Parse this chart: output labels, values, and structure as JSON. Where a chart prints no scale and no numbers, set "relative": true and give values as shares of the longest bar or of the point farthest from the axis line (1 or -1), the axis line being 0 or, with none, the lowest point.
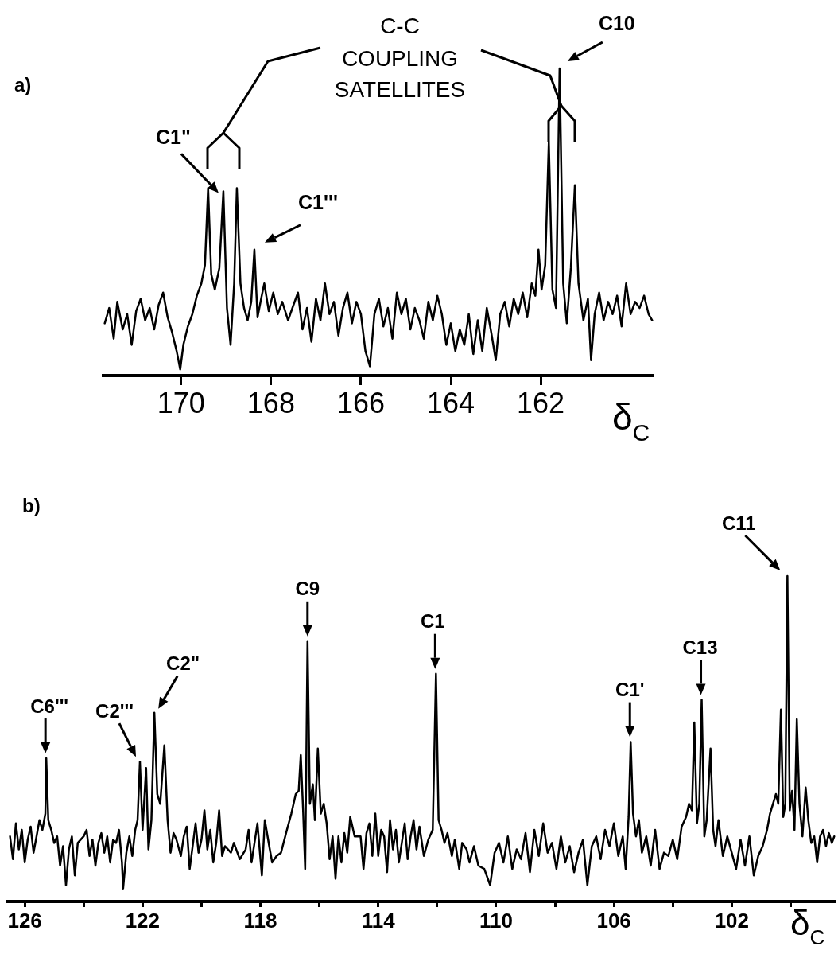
{
  "chart_data": [
    {
      "type": "line",
      "title": "a)",
      "xlabel": "δ$_{C}$",
      "relative": true,
      "marker": "none",
      "line_style": "solid",
      "xlim": [
        171.73,
        159.49
      ],
      "xticks": [
        170,
        168,
        166,
        164,
        162
      ],
      "annotations": [
        "C-C COUPLING SATELLITES",
        {
          "text": "C1\"",
          "x": 169.06,
          "y": 0.6
        },
        {
          "text": "C1'''",
          "x": 168.37,
          "y": 0.41
        },
        {
          "text": "C10",
          "x": 161.58,
          "y": 1.0
        }
      ],
      "series": [
        {
          "color": "#000000",
          "x": [
            171.7,
            171.6,
            171.5,
            171.42,
            171.3,
            171.2,
            171.1,
            171.0,
            170.9,
            170.8,
            170.7,
            170.6,
            170.5,
            170.4,
            170.3,
            170.2,
            170.1,
            170.02,
            169.95,
            169.85,
            169.75,
            169.65,
            169.55,
            169.47,
            169.4,
            169.33,
            169.25,
            169.15,
            169.06,
            168.98,
            168.9,
            168.82,
            168.76,
            168.68,
            168.6,
            168.52,
            168.44,
            168.37,
            168.3,
            168.22,
            168.15,
            168.05,
            167.95,
            167.85,
            167.75,
            167.62,
            167.5,
            167.4,
            167.3,
            167.2,
            167.1,
            167.0,
            166.9,
            166.8,
            166.7,
            166.6,
            166.5,
            166.4,
            166.3,
            166.2,
            166.1,
            166.0,
            165.9,
            165.8,
            165.7,
            165.6,
            165.5,
            165.4,
            165.3,
            165.2,
            165.1,
            165.0,
            164.9,
            164.8,
            164.7,
            164.6,
            164.5,
            164.4,
            164.3,
            164.2,
            164.1,
            164.0,
            163.9,
            163.8,
            163.7,
            163.6,
            163.5,
            163.4,
            163.3,
            163.2,
            163.1,
            163.0,
            162.9,
            162.8,
            162.7,
            162.6,
            162.5,
            162.4,
            162.3,
            162.2,
            162.12,
            162.05,
            161.98,
            161.9,
            161.82,
            161.74,
            161.66,
            161.58,
            161.5,
            161.42,
            161.33,
            161.24,
            161.16,
            161.05,
            160.95,
            160.88,
            160.8,
            160.7,
            160.6,
            160.5,
            160.4,
            160.3,
            160.2,
            160.1,
            160.0,
            159.9,
            159.8,
            159.7,
            159.6,
            159.52
          ],
          "values": [
            0.17,
            0.22,
            0.12,
            0.24,
            0.15,
            0.2,
            0.1,
            0.21,
            0.25,
            0.18,
            0.22,
            0.15,
            0.23,
            0.27,
            0.19,
            0.14,
            0.08,
            0.02,
            0.1,
            0.16,
            0.2,
            0.26,
            0.3,
            0.36,
            0.61,
            0.33,
            0.28,
            0.35,
            0.6,
            0.22,
            0.1,
            0.3,
            0.61,
            0.3,
            0.22,
            0.18,
            0.24,
            0.41,
            0.19,
            0.25,
            0.3,
            0.21,
            0.27,
            0.2,
            0.24,
            0.18,
            0.23,
            0.27,
            0.15,
            0.22,
            0.11,
            0.25,
            0.18,
            0.3,
            0.2,
            0.24,
            0.13,
            0.22,
            0.27,
            0.17,
            0.24,
            0.2,
            0.08,
            0.03,
            0.2,
            0.25,
            0.16,
            0.22,
            0.12,
            0.27,
            0.2,
            0.25,
            0.15,
            0.22,
            0.18,
            0.12,
            0.24,
            0.18,
            0.26,
            0.2,
            0.1,
            0.17,
            0.08,
            0.15,
            0.1,
            0.2,
            0.07,
            0.18,
            0.08,
            0.22,
            0.14,
            0.05,
            0.2,
            0.24,
            0.16,
            0.25,
            0.2,
            0.27,
            0.19,
            0.3,
            0.26,
            0.41,
            0.28,
            0.36,
            0.76,
            0.28,
            0.22,
            1.0,
            0.3,
            0.17,
            0.35,
            0.62,
            0.3,
            0.18,
            0.25,
            0.05,
            0.2,
            0.27,
            0.18,
            0.24,
            0.2,
            0.26,
            0.16,
            0.3,
            0.2,
            0.24,
            0.22,
            0.26,
            0.2,
            0.18
          ]
        }
      ]
    },
    {
      "type": "line",
      "title": "b)",
      "xlabel": "δ$_{C}$",
      "relative": true,
      "marker": "none",
      "line_style": "solid",
      "xlim": [
        126.57,
        98.5
      ],
      "xticks": [
        126,
        {
          "value": 124,
          "label": null
        },
        122,
        {
          "value": 120,
          "label": null
        },
        118,
        {
          "value": 116,
          "label": null
        },
        114,
        {
          "value": 112,
          "label": null
        },
        110,
        {
          "value": 108,
          "label": null
        },
        106,
        {
          "value": 104,
          "label": null
        },
        102,
        {
          "value": 100,
          "label": null
        }
      ],
      "annotations": [
        {
          "text": "C6'''",
          "x": 125.27,
          "y": 0.44
        },
        {
          "text": "C2'''",
          "x": 122.09,
          "y": 0.43
        },
        {
          "text": "C2\"",
          "x": 121.6,
          "y": 0.58
        },
        {
          "text": "C9",
          "x": 116.4,
          "y": 0.8
        },
        {
          "text": "C1",
          "x": 112.04,
          "y": 0.7
        },
        {
          "text": "C1'",
          "x": 105.43,
          "y": 0.49
        },
        {
          "text": "C13",
          "x": 103.02,
          "y": 0.62
        },
        {
          "text": "C11",
          "x": 100.11,
          "y": 1.0
        }
      ],
      "series": [
        {
          "color": "#000000",
          "x": [
            126.5,
            126.4,
            126.3,
            126.2,
            126.1,
            126.0,
            125.9,
            125.8,
            125.7,
            125.6,
            125.5,
            125.4,
            125.3,
            125.27,
            125.2,
            125.1,
            125.0,
            124.9,
            124.8,
            124.7,
            124.6,
            124.5,
            124.4,
            124.3,
            124.2,
            124.0,
            123.9,
            123.8,
            123.7,
            123.6,
            123.5,
            123.4,
            123.3,
            123.2,
            123.1,
            123.0,
            122.9,
            122.8,
            122.7,
            122.66,
            122.55,
            122.45,
            122.35,
            122.25,
            122.17,
            122.09,
            122.0,
            121.88,
            121.8,
            121.7,
            121.6,
            121.5,
            121.4,
            121.26,
            121.15,
            121.05,
            120.95,
            120.85,
            120.7,
            120.6,
            120.5,
            120.4,
            120.3,
            120.2,
            120.1,
            120.0,
            119.9,
            119.8,
            119.7,
            119.6,
            119.5,
            119.4,
            119.3,
            119.2,
            119.0,
            118.9,
            118.7,
            118.5,
            118.4,
            118.3,
            118.1,
            117.95,
            117.85,
            117.7,
            117.6,
            117.45,
            117.3,
            117.1,
            116.95,
            116.8,
            116.7,
            116.63,
            116.55,
            116.48,
            116.4,
            116.32,
            116.22,
            116.15,
            116.05,
            115.95,
            115.85,
            115.75,
            115.65,
            115.55,
            115.45,
            115.35,
            115.25,
            115.15,
            115.05,
            114.95,
            114.8,
            114.6,
            114.5,
            114.4,
            114.3,
            114.2,
            114.1,
            114.0,
            113.9,
            113.8,
            113.7,
            113.6,
            113.5,
            113.4,
            113.3,
            113.2,
            113.1,
            113.0,
            112.9,
            112.8,
            112.7,
            112.6,
            112.45,
            112.3,
            112.15,
            112.04,
            111.95,
            111.85,
            111.75,
            111.65,
            111.5,
            111.4,
            111.25,
            111.15,
            111.0,
            110.9,
            110.75,
            110.6,
            110.4,
            110.2,
            110.05,
            109.9,
            109.75,
            109.6,
            109.45,
            109.3,
            109.15,
            109.0,
            108.85,
            108.7,
            108.55,
            108.4,
            108.25,
            108.1,
            107.95,
            107.8,
            107.65,
            107.5,
            107.35,
            107.2,
            107.05,
            106.9,
            106.75,
            106.6,
            106.45,
            106.3,
            106.15,
            106.0,
            105.85,
            105.7,
            105.6,
            105.5,
            105.43,
            105.35,
            105.25,
            105.15,
            105.05,
            104.9,
            104.75,
            104.6,
            104.45,
            104.3,
            104.15,
            104.0,
            103.85,
            103.7,
            103.55,
            103.45,
            103.35,
            103.27,
            103.18,
            103.1,
            103.02,
            102.93,
            102.85,
            102.72,
            102.63,
            102.55,
            102.45,
            102.3,
            102.15,
            102.0,
            101.85,
            101.7,
            101.55,
            101.4,
            101.25,
            101.1,
            100.95,
            100.8,
            100.7,
            100.6,
            100.5,
            100.42,
            100.33,
            100.25,
            100.18,
            100.11,
            100.03,
            99.95,
            99.87,
            99.79,
            99.7,
            99.6,
            99.49,
            99.4,
            99.3,
            99.2,
            99.1,
            99.0,
            98.9,
            98.8,
            98.7,
            98.6,
            98.52
          ],
          "values": [
            0.2,
            0.13,
            0.24,
            0.16,
            0.22,
            0.12,
            0.19,
            0.23,
            0.15,
            0.2,
            0.25,
            0.22,
            0.27,
            0.44,
            0.25,
            0.22,
            0.18,
            0.2,
            0.11,
            0.17,
            0.05,
            0.16,
            0.2,
            0.08,
            0.18,
            0.2,
            0.22,
            0.14,
            0.19,
            0.11,
            0.18,
            0.21,
            0.15,
            0.2,
            0.12,
            0.19,
            0.18,
            0.22,
            0.12,
            0.04,
            0.15,
            0.2,
            0.14,
            0.22,
            0.25,
            0.43,
            0.22,
            0.41,
            0.16,
            0.25,
            0.58,
            0.33,
            0.3,
            0.48,
            0.25,
            0.15,
            0.21,
            0.19,
            0.14,
            0.2,
            0.23,
            0.1,
            0.17,
            0.24,
            0.15,
            0.19,
            0.28,
            0.16,
            0.22,
            0.12,
            0.18,
            0.28,
            0.14,
            0.17,
            0.15,
            0.18,
            0.13,
            0.16,
            0.22,
            0.12,
            0.24,
            0.08,
            0.25,
            0.17,
            0.12,
            0.14,
            0.15,
            0.22,
            0.27,
            0.33,
            0.34,
            0.45,
            0.28,
            0.1,
            0.8,
            0.3,
            0.36,
            0.25,
            0.47,
            0.27,
            0.3,
            0.24,
            0.13,
            0.2,
            0.07,
            0.2,
            0.12,
            0.21,
            0.15,
            0.26,
            0.2,
            0.2,
            0.1,
            0.21,
            0.24,
            0.14,
            0.27,
            0.14,
            0.22,
            0.2,
            0.09,
            0.25,
            0.16,
            0.22,
            0.12,
            0.18,
            0.24,
            0.13,
            0.2,
            0.25,
            0.16,
            0.23,
            0.14,
            0.19,
            0.22,
            0.7,
            0.25,
            0.22,
            0.18,
            0.21,
            0.14,
            0.19,
            0.1,
            0.18,
            0.16,
            0.12,
            0.17,
            0.11,
            0.1,
            0.05,
            0.15,
            0.18,
            0.12,
            0.2,
            0.1,
            0.16,
            0.13,
            0.21,
            0.09,
            0.22,
            0.14,
            0.24,
            0.15,
            0.18,
            0.1,
            0.2,
            0.12,
            0.17,
            0.09,
            0.15,
            0.19,
            0.05,
            0.17,
            0.2,
            0.13,
            0.22,
            0.17,
            0.24,
            0.14,
            0.2,
            0.1,
            0.26,
            0.49,
            0.27,
            0.2,
            0.25,
            0.15,
            0.2,
            0.11,
            0.22,
            0.1,
            0.15,
            0.14,
            0.19,
            0.13,
            0.23,
            0.26,
            0.3,
            0.28,
            0.55,
            0.24,
            0.3,
            0.62,
            0.2,
            0.25,
            0.47,
            0.22,
            0.17,
            0.25,
            0.14,
            0.2,
            0.15,
            0.1,
            0.19,
            0.11,
            0.2,
            0.08,
            0.14,
            0.17,
            0.22,
            0.27,
            0.3,
            0.33,
            0.3,
            0.59,
            0.26,
            0.3,
            1.0,
            0.28,
            0.34,
            0.22,
            0.56,
            0.3,
            0.2,
            0.35,
            0.25,
            0.18,
            0.2,
            0.12,
            0.2,
            0.22,
            0.17,
            0.21,
            0.18,
            0.2
          ]
        }
      ]
    }
  ]
}
